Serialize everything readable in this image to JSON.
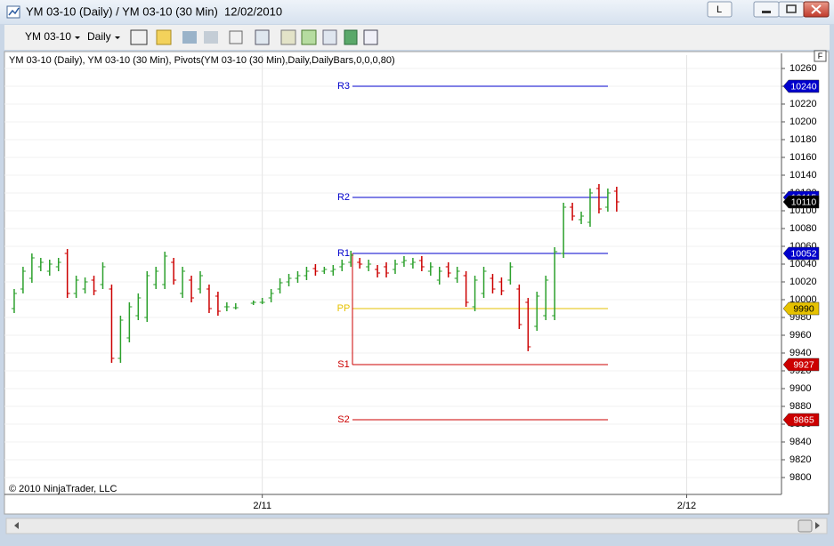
{
  "window": {
    "title": "YM 03-10 (Daily) / YM 03-10 (30 Min)  12/02/2010",
    "l_button": "L",
    "axis_button": "F"
  },
  "toolbar": {
    "instrument": "YM 03-10",
    "period": "Daily"
  },
  "chart_data": {
    "type": "ohlc",
    "title": "YM 03-10 (Daily), YM 03-10 (30 Min), Pivots(YM 03-10 (30 Min),Daily,DailyBars,0,0,0,80)",
    "annotation": "© 2010 NinjaTrader, LLC",
    "x": [
      0,
      1,
      2,
      3,
      4,
      5,
      6,
      7,
      8,
      9,
      10,
      11,
      12,
      13,
      14,
      15,
      16,
      17,
      18,
      19,
      20,
      21,
      22,
      23,
      24,
      25,
      27,
      28,
      29,
      30,
      31,
      32,
      33,
      34,
      35,
      36,
      37,
      38,
      39,
      40,
      41,
      42,
      43,
      44,
      45,
      46,
      47,
      48,
      49,
      50,
      51,
      52,
      53,
      54,
      55,
      56,
      57,
      58,
      59,
      60,
      61,
      62,
      63,
      64,
      65,
      66,
      67,
      68
    ],
    "open": [
      9990,
      10012,
      10024,
      10037,
      10032,
      10037,
      10052,
      10007,
      10012,
      10022,
      10017,
      10012,
      9934,
      9957,
      9982,
      9980,
      10017,
      10017,
      10042,
      10007,
      10022,
      10012,
      10012,
      10004,
      9992,
      9991,
      9996,
      9997,
      10002,
      10012,
      10020,
      10024,
      10027,
      10035,
      10032,
      10032,
      10037,
      10042,
      10042,
      10037,
      10034,
      10037,
      10034,
      10042,
      10040,
      10044,
      10032,
      10022,
      10037,
      10024,
      10027,
      9992,
      10007,
      10024,
      10020,
      10022,
      10012,
      9997,
      9970,
      9982,
      9982,
      10052,
      10104,
      10090,
      10087,
      10125,
      10104,
      10122
    ],
    "high": [
      10012,
      10037,
      10052,
      10047,
      10045,
      10047,
      10057,
      10027,
      10025,
      10027,
      10042,
      10017,
      9982,
      9997,
      10007,
      10032,
      10037,
      10054,
      10047,
      10037,
      10027,
      10032,
      10017,
      10009,
      9997,
      9996,
      9999,
      10002,
      10012,
      10024,
      10029,
      10032,
      10037,
      10040,
      10037,
      10039,
      10045,
      10055,
      10047,
      10045,
      10039,
      10042,
      10045,
      10049,
      10047,
      10049,
      10042,
      10037,
      10042,
      10037,
      10032,
      10027,
      10037,
      10029,
      10025,
      10042,
      10017,
      10002,
      10009,
      10027,
      10059,
      10109,
      10109,
      10099,
      10125,
      10130,
      10125,
      10127
    ],
    "low": [
      9985,
      10007,
      10019,
      10032,
      10027,
      10032,
      10002,
      10002,
      10007,
      10005,
      10012,
      9929,
      9929,
      9952,
      9977,
      9975,
      10012,
      10012,
      10017,
      10002,
      9997,
      10007,
      9985,
      9982,
      9987,
      9989,
      9994,
      9995,
      9997,
      10007,
      10015,
      10019,
      10022,
      10027,
      10029,
      10027,
      10032,
      10037,
      10035,
      10032,
      10025,
      10025,
      10029,
      10037,
      10035,
      10032,
      10027,
      10017,
      10025,
      10019,
      9992,
      9987,
      10002,
      10007,
      10005,
      10017,
      9967,
      9942,
      9965,
      9977,
      9977,
      10047,
      10089,
      10085,
      10082,
      10097,
      10099,
      10099
    ],
    "close": [
      10007,
      10032,
      10047,
      10042,
      10040,
      10042,
      10007,
      10022,
      10020,
      10010,
      10037,
      9934,
      9977,
      9992,
      10002,
      10027,
      10032,
      10049,
      10022,
      10032,
      10002,
      10027,
      9990,
      9987,
      9992,
      9991,
      9997,
      9997,
      10007,
      10019,
      10024,
      10027,
      10032,
      10032,
      10034,
      10034,
      10040,
      10050,
      10040,
      10040,
      10030,
      10030,
      10040,
      10044,
      10042,
      10037,
      10037,
      10032,
      10030,
      10032,
      9997,
      10022,
      10032,
      10012,
      10010,
      10037,
      9972,
      9947,
      10004,
      10022,
      10054,
      10104,
      10094,
      10094,
      10120,
      10102,
      10120,
      10110
    ],
    "up_color": "#2ca02c",
    "down_color": "#cc0000",
    "last_color": "#000000",
    "xlim": [
      -1.1,
      86.6
    ],
    "ylim": [
      9781,
      10275
    ],
    "yticks": [
      9800,
      9820,
      9840,
      9860,
      9880,
      9900,
      9920,
      9940,
      9960,
      9980,
      10000,
      10020,
      10040,
      10060,
      10080,
      10100,
      10120,
      10140,
      10160,
      10180,
      10200,
      10220,
      10240,
      10260
    ],
    "xticks": [
      {
        "value": 28,
        "label": "2/11"
      },
      {
        "value": 75.9,
        "label": "2/12"
      }
    ],
    "grid": true,
    "pivots": [
      {
        "name": "R3",
        "value": 10240,
        "color": "#0000cc"
      },
      {
        "name": "R2",
        "value": 10115,
        "color": "#0000cc"
      },
      {
        "name": "R1",
        "value": 10052,
        "color": "#0000cc"
      },
      {
        "name": "PP",
        "value": 9990,
        "color": "#e6c200"
      },
      {
        "name": "S1",
        "value": 9927,
        "color": "#cc0000"
      },
      {
        "name": "S2",
        "value": 9865,
        "color": "#cc0000"
      }
    ]
  }
}
